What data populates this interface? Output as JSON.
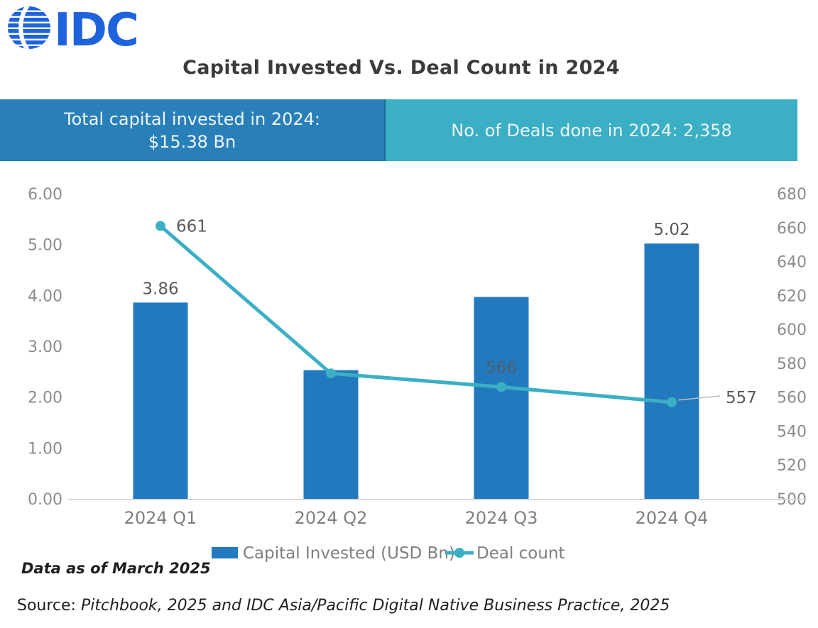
{
  "logo": {
    "text": "IDC",
    "color": "#1f63dc"
  },
  "title": "Capital Invested Vs. Deal Count in 2024",
  "banners": {
    "left": {
      "line1": "Total capital invested in 2024:",
      "line2": "$15.38 Bn",
      "bg": "#2980b9"
    },
    "right": {
      "text": "No. of Deals done in 2024: 2,358",
      "bg": "#3bafc4"
    }
  },
  "chart_data": {
    "type": "bar+line combo",
    "categories": [
      "2024 Q1",
      "2024 Q2",
      "2024 Q3",
      "2024 Q4"
    ],
    "series": [
      {
        "name": "Capital Invested (USD Bn)",
        "type": "bar",
        "axis": "left",
        "color": "#2379be",
        "values": [
          3.86,
          2.53,
          3.97,
          5.02
        ],
        "labels": [
          "3.86",
          null,
          null,
          "5.02"
        ]
      },
      {
        "name": "Deal count",
        "type": "line",
        "axis": "right",
        "color": "#3bafc4",
        "values": [
          661,
          574,
          566,
          557
        ],
        "labels": [
          "661",
          null,
          "566",
          "557"
        ],
        "label_pos": [
          "right",
          "none",
          "above",
          "leader"
        ]
      }
    ],
    "left_axis": {
      "min": 0,
      "max": 6,
      "step": 1,
      "ticks": [
        "6.00",
        "5.00",
        "4.00",
        "3.00",
        "2.00",
        "1.00",
        "0.00"
      ]
    },
    "right_axis": {
      "min": 500,
      "max": 680,
      "step": 20,
      "ticks": [
        "680",
        "660",
        "640",
        "620",
        "600",
        "580",
        "560",
        "540",
        "520",
        "500"
      ]
    },
    "legend": [
      {
        "label": "Capital Invested (USD Bn)",
        "type": "bar",
        "color": "#2379be"
      },
      {
        "label": "Deal count",
        "type": "line",
        "color": "#3bafc4"
      }
    ],
    "grid": "off",
    "axis_line_color": "#d9d9d9",
    "legend_position": "bottom-center"
  },
  "footer": {
    "data_as_of": "Data as of March 2025",
    "source_prefix": "Source: ",
    "source_italic": "Pitchbook, 2025 and IDC Asia/Pacific Digital Native Business Practice, 2025"
  }
}
